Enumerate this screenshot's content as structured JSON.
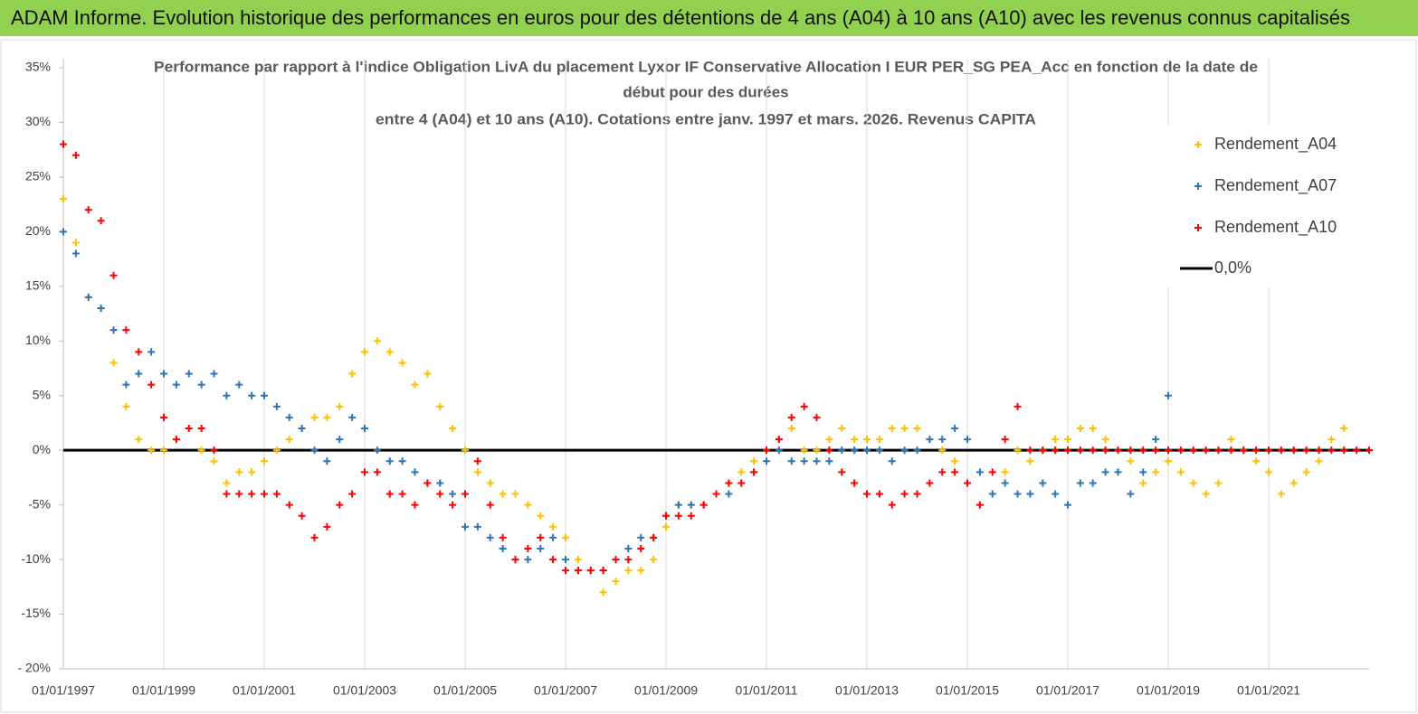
{
  "chart_data": {
    "type": "scatter",
    "title": "ADAM Informe. Evolution historique des performances en euros pour des détentions de 4 ans (A04) à 10 ans (A10) avec les revenus connus capitalisés",
    "subtitle_lines": [
      "Performance par rapport à l'indice Obligation LivA  du placement Lyxor IF Conservative Allocation I EUR PER_SG PEA_Acc en fonction de la date de",
      "début pour des durées",
      "entre 4 (A04) et 10 ans (A10). Cotations entre janv. 1997 et mars. 2026. Revenus CAPITA"
    ],
    "x": [
      "01/01/1997",
      "01/04/1997",
      "01/07/1997",
      "01/10/1997",
      "01/01/1998",
      "01/04/1998",
      "01/07/1998",
      "01/10/1998",
      "01/01/1999",
      "01/04/1999",
      "01/07/1999",
      "01/10/1999",
      "01/01/2000",
      "01/04/2000",
      "01/07/2000",
      "01/10/2000",
      "01/01/2001",
      "01/04/2001",
      "01/07/2001",
      "01/10/2001",
      "01/01/2002",
      "01/04/2002",
      "01/07/2002",
      "01/10/2002",
      "01/01/2003",
      "01/04/2003",
      "01/07/2003",
      "01/10/2003",
      "01/01/2004",
      "01/04/2004",
      "01/07/2004",
      "01/10/2004",
      "01/01/2005",
      "01/04/2005",
      "01/07/2005",
      "01/10/2005",
      "01/01/2006",
      "01/04/2006",
      "01/07/2006",
      "01/10/2006",
      "01/01/2007",
      "01/04/2007",
      "01/07/2007",
      "01/10/2007",
      "01/01/2008",
      "01/04/2008",
      "01/07/2008",
      "01/10/2008",
      "01/01/2009",
      "01/04/2009",
      "01/07/2009",
      "01/10/2009",
      "01/01/2010",
      "01/04/2010",
      "01/07/2010",
      "01/10/2010",
      "01/01/2011",
      "01/04/2011",
      "01/07/2011",
      "01/10/2011",
      "01/01/2012",
      "01/04/2012",
      "01/07/2012",
      "01/10/2012",
      "01/01/2013",
      "01/04/2013",
      "01/07/2013",
      "01/10/2013",
      "01/01/2014",
      "01/04/2014",
      "01/07/2014",
      "01/10/2014",
      "01/01/2015",
      "01/04/2015",
      "01/07/2015",
      "01/10/2015",
      "01/01/2016",
      "01/04/2016",
      "01/07/2016",
      "01/10/2016",
      "01/01/2017",
      "01/04/2017",
      "01/07/2017",
      "01/10/2017",
      "01/01/2018",
      "01/04/2018",
      "01/07/2018",
      "01/10/2018",
      "01/01/2019",
      "01/04/2019",
      "01/07/2019",
      "01/10/2019",
      "01/01/2020",
      "01/04/2020",
      "01/07/2020",
      "01/10/2020",
      "01/01/2021",
      "01/04/2021",
      "01/07/2021",
      "01/10/2021",
      "01/01/2022",
      "01/04/2022",
      "01/07/2022",
      "01/10/2022",
      "01/01/2023"
    ],
    "series": [
      {
        "name": "Rendement_A04",
        "color": "#ffc000",
        "values": [
          23,
          19,
          14,
          13,
          8,
          4,
          1,
          0,
          0,
          1,
          2,
          0,
          -1,
          -3,
          -2,
          -2,
          -1,
          0,
          1,
          2,
          3,
          3,
          4,
          7,
          9,
          10,
          9,
          8,
          6,
          7,
          4,
          2,
          0,
          -2,
          -3,
          -4,
          -4,
          -5,
          -6,
          -7,
          -8,
          -10,
          -11,
          -13,
          -12,
          -11,
          -11,
          -10,
          -7,
          -5,
          -5,
          -5,
          -4,
          -3,
          -2,
          -1,
          0,
          1,
          2,
          0,
          0,
          1,
          2,
          1,
          1,
          1,
          2,
          2,
          2,
          1,
          0,
          -1,
          -3,
          -5,
          -4,
          -2,
          0,
          -1,
          0,
          1,
          1,
          2,
          2,
          1,
          0,
          -1,
          -3,
          -2,
          -1,
          -2,
          -3,
          -4,
          -3,
          1,
          0,
          -1,
          -2,
          -4,
          -3,
          -2,
          -1,
          1,
          2,
          null,
          null
        ]
      },
      {
        "name": "Rendement_A07",
        "color": "#2e75b6",
        "values": [
          20,
          18,
          14,
          13,
          11,
          6,
          7,
          9,
          7,
          6,
          7,
          6,
          7,
          5,
          6,
          5,
          5,
          4,
          3,
          2,
          0,
          -1,
          1,
          3,
          2,
          0,
          -1,
          -1,
          -2,
          -3,
          -3,
          -4,
          -7,
          -7,
          -8,
          -9,
          -10,
          -10,
          -9,
          -8,
          -10,
          -11,
          -11,
          -11,
          -10,
          -9,
          -8,
          -8,
          -6,
          -5,
          -5,
          -5,
          -4,
          -4,
          -3,
          -2,
          -1,
          0,
          -1,
          -1,
          -1,
          -1,
          0,
          0,
          0,
          0,
          -1,
          0,
          0,
          1,
          1,
          2,
          1,
          -2,
          -4,
          -3,
          -4,
          -4,
          -3,
          -4,
          -5,
          -3,
          -3,
          -2,
          -2,
          -4,
          -2,
          1,
          5,
          null,
          null,
          null,
          null,
          null,
          null,
          null,
          null,
          null,
          null,
          null,
          null,
          null,
          null,
          null,
          null
        ]
      },
      {
        "name": "Rendement_A10",
        "color": "#ff0000",
        "values": [
          28,
          27,
          22,
          21,
          16,
          11,
          9,
          6,
          3,
          1,
          2,
          2,
          0,
          -4,
          -4,
          -4,
          -4,
          -4,
          -5,
          -6,
          -8,
          -7,
          -5,
          -4,
          -2,
          -2,
          -4,
          -4,
          -5,
          -3,
          -4,
          -5,
          -4,
          -1,
          -5,
          -8,
          -10,
          -9,
          -8,
          -10,
          -11,
          -11,
          -11,
          -11,
          -10,
          -10,
          -9,
          -8,
          -6,
          -6,
          -6,
          -5,
          -4,
          -3,
          -3,
          -2,
          0,
          1,
          3,
          4,
          3,
          0,
          -2,
          -3,
          -4,
          -4,
          -5,
          -4,
          -4,
          -3,
          -2,
          -2,
          -3,
          -5,
          -2,
          1,
          4,
          0,
          0,
          0,
          0,
          0,
          0,
          0,
          0,
          0,
          0,
          0,
          0,
          0,
          0,
          0,
          0,
          0,
          0,
          0,
          0,
          0,
          0,
          0,
          0,
          0,
          0,
          0,
          0
        ]
      }
    ],
    "reference_line": {
      "name": "0,0%",
      "value": 0,
      "color": "#000000"
    },
    "xlim": [
      "01/01/1997",
      "01/01/2023"
    ],
    "xticks": [
      "01/01/1997",
      "01/01/1999",
      "01/01/2001",
      "01/01/2003",
      "01/01/2005",
      "01/01/2007",
      "01/01/2009",
      "01/01/2011",
      "01/01/2013",
      "01/01/2015",
      "01/01/2017",
      "01/01/2019",
      "01/01/2021"
    ],
    "ylim": [
      -20,
      35
    ],
    "yticks": [
      {
        "value": -20,
        "label": "- 20%"
      },
      {
        "value": -15,
        "label": "-15%"
      },
      {
        "value": -10,
        "label": "-10%"
      },
      {
        "value": -5,
        "label": "-5%"
      },
      {
        "value": 0,
        "label": "0%"
      },
      {
        "value": 5,
        "label": "5%"
      },
      {
        "value": 10,
        "label": "10%"
      },
      {
        "value": 15,
        "label": "15%"
      },
      {
        "value": 20,
        "label": "20%"
      },
      {
        "value": 25,
        "label": "25%"
      },
      {
        "value": 30,
        "label": "30%"
      },
      {
        "value": 35,
        "label": "35%"
      }
    ],
    "grid": true,
    "legend": "upper right"
  }
}
